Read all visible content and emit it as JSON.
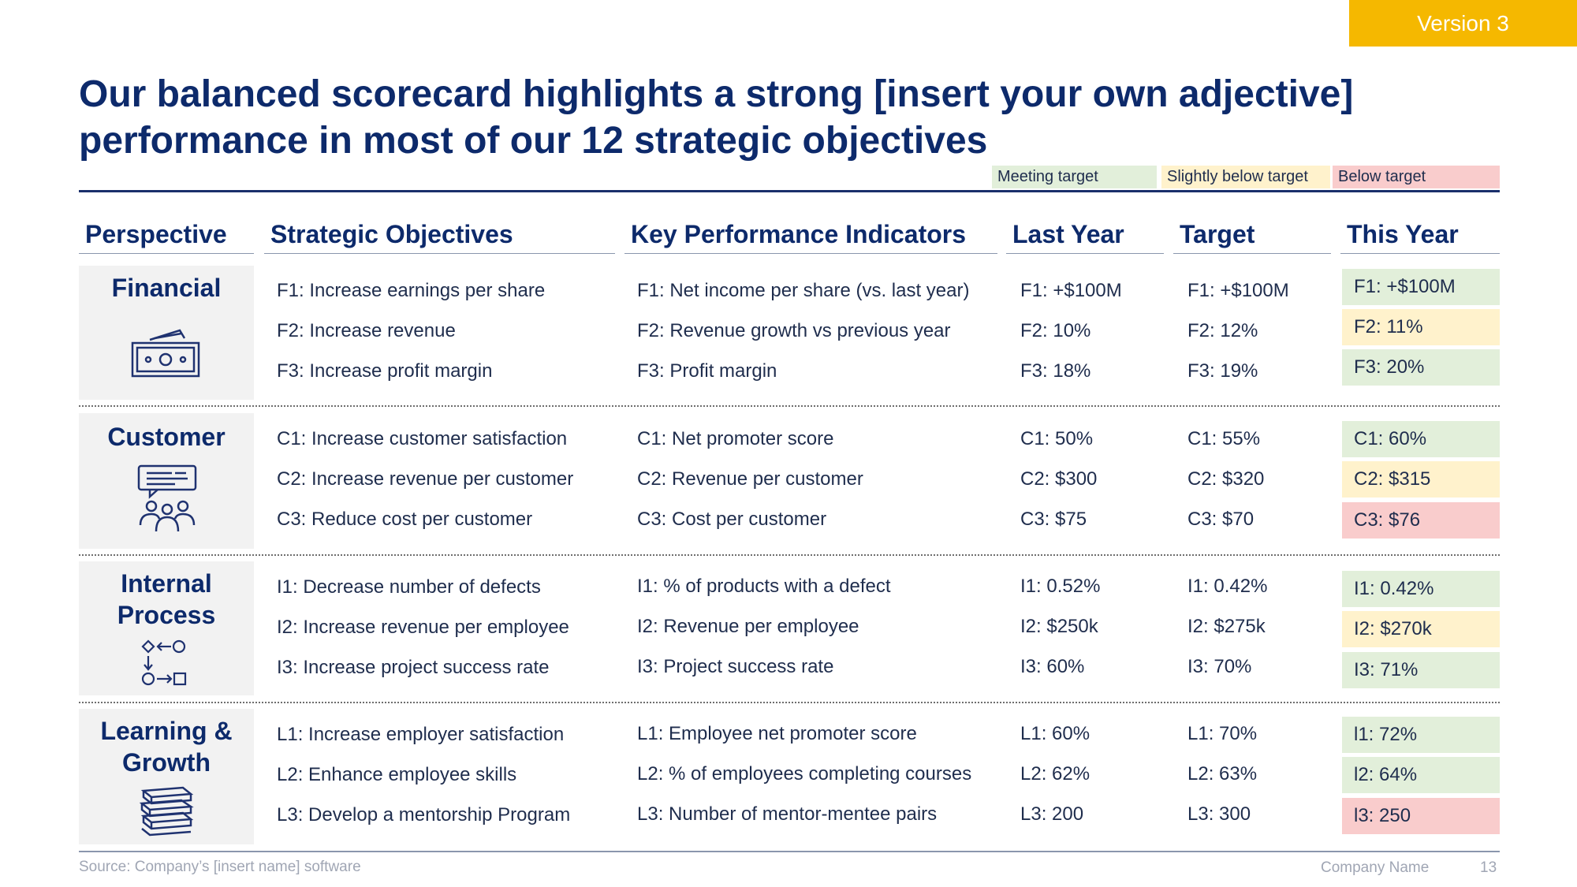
{
  "version_tag": "Version 3",
  "title": "Our balanced scorecard highlights a strong [insert your own adjective] performance in most of our 12 strategic objectives",
  "legend": {
    "meeting": "Meeting target",
    "slightly_below": "Slightly below target",
    "below": "Below target"
  },
  "colors": {
    "meeting": "#e2efda",
    "slightly_below": "#fff2cc",
    "below": "#f9cccc",
    "title": "#0d2a6b",
    "version_tag": "#f5b800"
  },
  "headers": {
    "perspective": "Perspective",
    "objectives": "Strategic Objectives",
    "kpis": "Key Performance Indicators",
    "last_year": "Last Year",
    "target": "Target",
    "this_year": "This Year"
  },
  "rows": {
    "financial": {
      "label": "Financial",
      "icon": "money-icon",
      "objectives": [
        "F1: Increase earnings per share",
        "F2: Increase revenue",
        "F3: Increase profit margin"
      ],
      "kpis": [
        "F1: Net income per share (vs. last year)",
        "F2: Revenue growth vs previous year",
        "F3: Profit margin"
      ],
      "last_year": [
        "F1: +$100M",
        "F2: 10%",
        "F3: 18%"
      ],
      "target": [
        "F1: +$100M",
        "F2: 12%",
        "F3: 19%"
      ],
      "this_year": [
        "F1: +$100M",
        "F2: 11%",
        "F3: 20%"
      ],
      "status": [
        "meeting",
        "slightly_below",
        "meeting"
      ]
    },
    "customer": {
      "label": "Customer",
      "icon": "customer-feedback-icon",
      "objectives": [
        "C1: Increase customer satisfaction",
        "C2: Increase revenue per customer",
        "C3: Reduce cost per customer"
      ],
      "kpis": [
        "C1: Net promoter score",
        "C2: Revenue per customer",
        "C3: Cost per customer"
      ],
      "last_year": [
        "C1: 50%",
        "C2: $300",
        "C3: $75"
      ],
      "target": [
        "C1: 55%",
        "C2: $320",
        "C3: $70"
      ],
      "this_year": [
        "C1: 60%",
        "C2: $315",
        "C3: $76"
      ],
      "status": [
        "meeting",
        "slightly_below",
        "below"
      ]
    },
    "internal": {
      "label_line1": "Internal",
      "label_line2": "Process",
      "icon": "process-flow-icon",
      "objectives": [
        "I1: Decrease number of defects",
        "I2: Increase revenue per employee",
        "I3: Increase project success rate"
      ],
      "kpis": [
        "I1: % of products with a defect",
        "I2: Revenue per employee",
        "I3: Project success rate"
      ],
      "last_year": [
        "I1: 0.52%",
        "I2: $250k",
        "I3: 60%"
      ],
      "target": [
        "I1: 0.42%",
        "I2: $275k",
        "I3: 70%"
      ],
      "this_year": [
        "I1: 0.42%",
        "I2: $270k",
        "I3: 71%"
      ],
      "status": [
        "meeting",
        "slightly_below",
        "meeting"
      ]
    },
    "learning": {
      "label_line1": "Learning &",
      "label_line2": "Growth",
      "icon": "books-icon",
      "objectives": [
        "L1: Increase employer satisfaction",
        "L2: Enhance employee skills",
        "L3: Develop a mentorship Program"
      ],
      "kpis": [
        "L1: Employee net promoter score",
        "L2: % of employees completing courses",
        "L3: Number of mentor-mentee pairs"
      ],
      "last_year": [
        "L1: 60%",
        "L2: 62%",
        "L3: 200"
      ],
      "target": [
        "L1: 70%",
        "L2: 63%",
        "L3: 300"
      ],
      "this_year": [
        "l1: 72%",
        "l2: 64%",
        "l3: 250"
      ],
      "status": [
        "meeting",
        "meeting",
        "below"
      ]
    }
  },
  "footer": {
    "source": "Source: Company’s [insert name] software",
    "company": "Company Name",
    "page": "13"
  }
}
